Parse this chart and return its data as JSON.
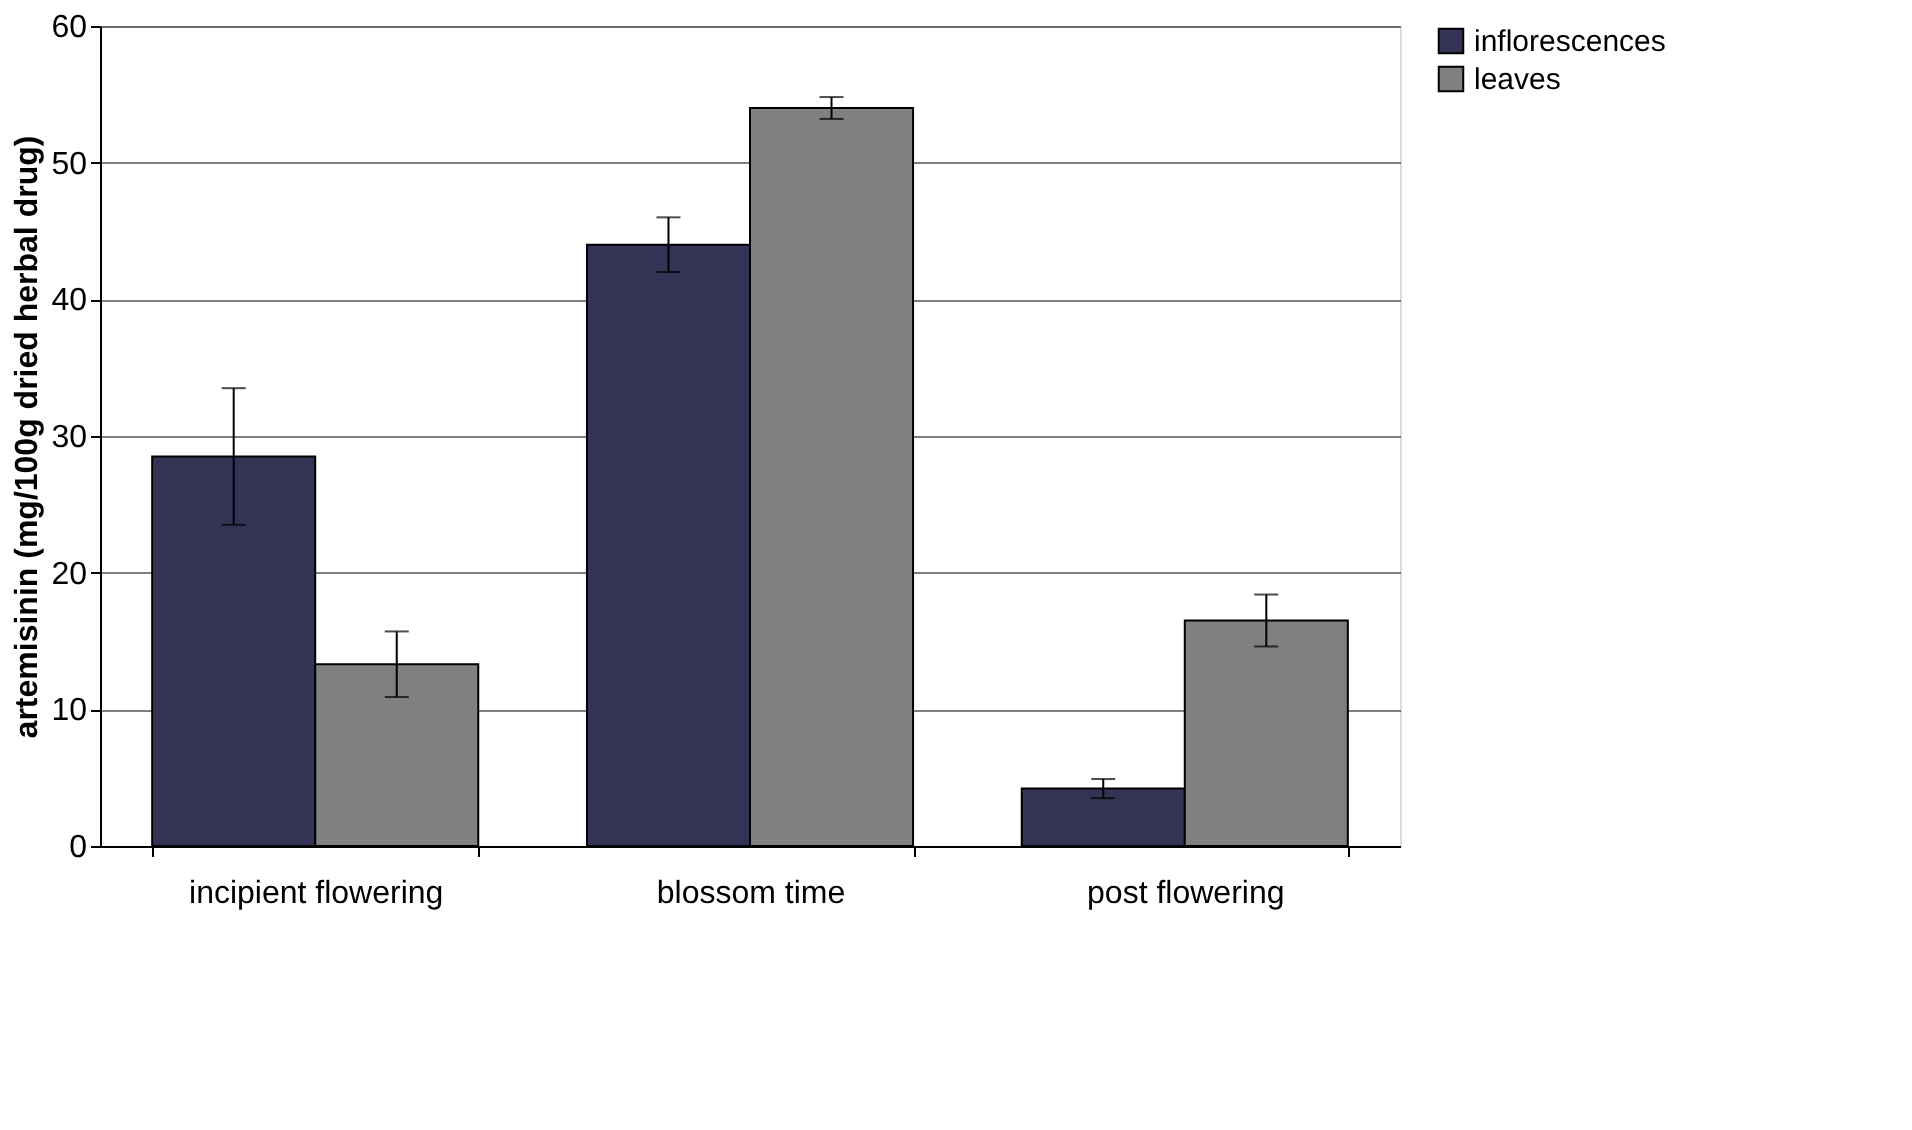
{
  "chart_data": {
    "type": "bar",
    "ylabel": "artemisinin (mg/100g dried herbal drug)",
    "categories": [
      "incipient flowering",
      "blossom time",
      "post flowering"
    ],
    "series": [
      {
        "name": "inflorescences",
        "color": "#333355",
        "values": [
          28.5,
          44,
          4.2
        ],
        "errors": [
          5,
          2,
          0.7
        ]
      },
      {
        "name": "leaves",
        "color": "#808080",
        "values": [
          13.3,
          54,
          16.5
        ],
        "errors": [
          2.4,
          0.8,
          1.9
        ]
      }
    ],
    "ylim": [
      0,
      60
    ],
    "yticks": [
      0,
      10,
      20,
      30,
      40,
      50,
      60
    ],
    "grid": "y",
    "legend": "right"
  }
}
